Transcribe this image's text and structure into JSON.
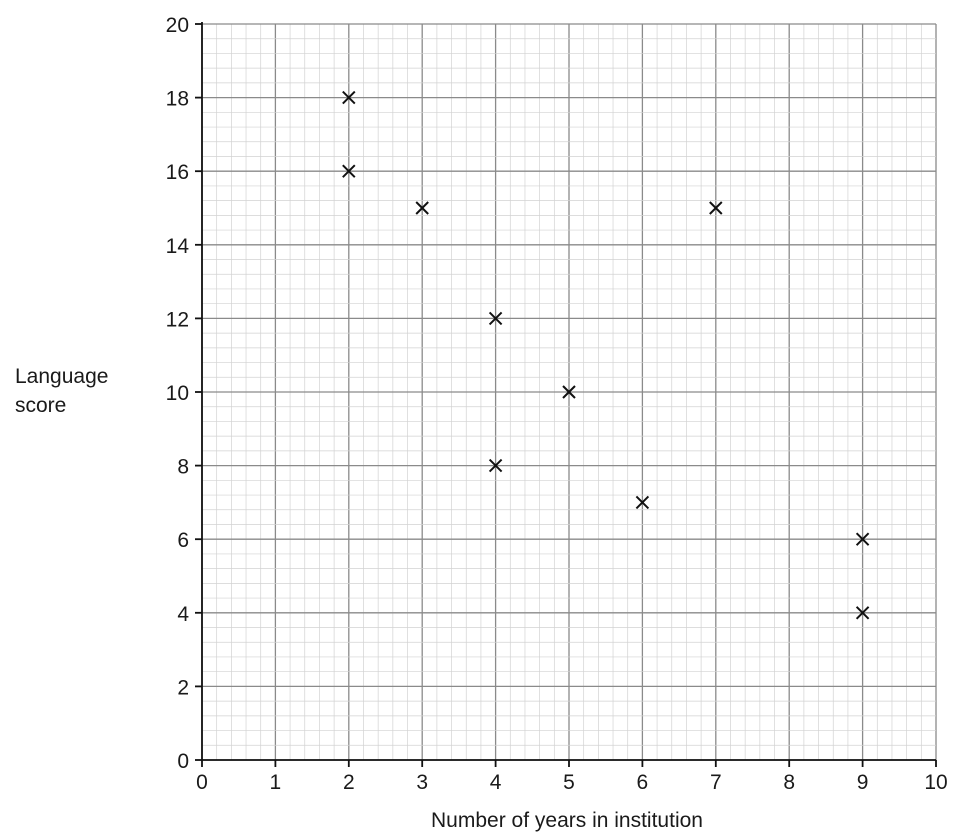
{
  "chart_data": {
    "type": "scatter",
    "xlabel": "Number of years in institution",
    "ylabel_lines": [
      "Language",
      "score"
    ],
    "xlim": [
      0,
      10
    ],
    "ylim": [
      0,
      20
    ],
    "x_ticks": [
      0,
      1,
      2,
      3,
      4,
      5,
      6,
      7,
      8,
      9,
      10
    ],
    "y_ticks": [
      0,
      2,
      4,
      6,
      8,
      10,
      12,
      14,
      16,
      18,
      20
    ],
    "grid": true,
    "marker": "x",
    "points": [
      {
        "x": 2,
        "y": 18
      },
      {
        "x": 2,
        "y": 16
      },
      {
        "x": 3,
        "y": 15
      },
      {
        "x": 4,
        "y": 12
      },
      {
        "x": 4,
        "y": 8
      },
      {
        "x": 5,
        "y": 10
      },
      {
        "x": 6,
        "y": 7
      },
      {
        "x": 7,
        "y": 15
      },
      {
        "x": 9,
        "y": 6
      },
      {
        "x": 9,
        "y": 4
      }
    ]
  }
}
